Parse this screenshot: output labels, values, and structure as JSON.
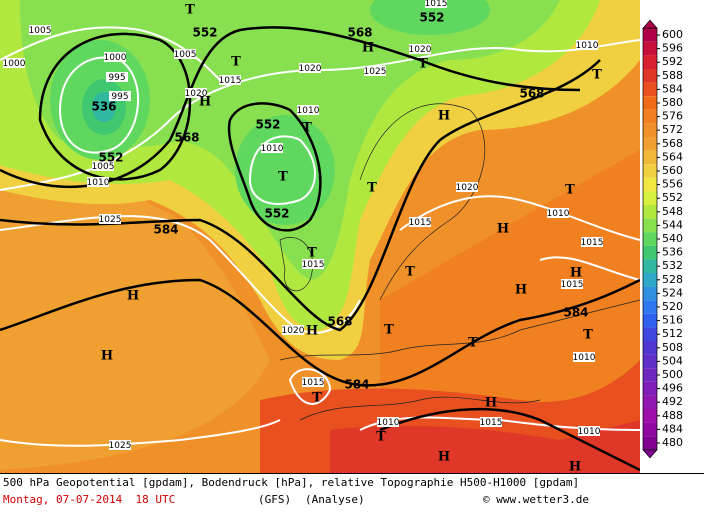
{
  "map": {
    "contour_labels": [
      "552",
      "552",
      "568",
      "536",
      "552",
      "552",
      "552",
      "568",
      "568",
      "584",
      "584",
      "568",
      "584"
    ],
    "isobar_labels": [
      "1005",
      "1000",
      "1000",
      "995",
      "995",
      "1005",
      "1015",
      "1020",
      "1025",
      "1020",
      "1010",
      "1010",
      "1005",
      "1010",
      "1025",
      "1020",
      "1015",
      "1010",
      "1015",
      "1015",
      "1015",
      "1010",
      "1015",
      "1010",
      "1015",
      "1010",
      "1025",
      "1020",
      "1010",
      "1020",
      "1015"
    ],
    "pressure_centers": [
      "T",
      "T",
      "H",
      "T",
      "T",
      "T",
      "H",
      "T",
      "H",
      "T",
      "H",
      "T",
      "T",
      "H",
      "H",
      "H",
      "H",
      "H",
      "T",
      "T",
      "T",
      "T",
      "H",
      "T",
      "H",
      "H",
      "T"
    ]
  },
  "legend": {
    "levels": [
      600,
      596,
      592,
      588,
      584,
      580,
      576,
      572,
      568,
      564,
      560,
      556,
      552,
      548,
      544,
      540,
      536,
      532,
      528,
      524,
      520,
      516,
      512,
      508,
      504,
      500,
      496,
      492,
      488,
      484,
      480
    ],
    "colors": [
      "#b0004a",
      "#c8103c",
      "#d82030",
      "#e03828",
      "#e85020",
      "#f06a18",
      "#f08020",
      "#f09028",
      "#f0a030",
      "#f0b838",
      "#f0d040",
      "#f0e840",
      "#d8f040",
      "#b0e840",
      "#88e050",
      "#60d860",
      "#40c870",
      "#30b8a0",
      "#30a8c8",
      "#3090e0",
      "#3078f0",
      "#3060f0",
      "#4048e0",
      "#5038d0",
      "#6030c8",
      "#7028c0",
      "#8020b8",
      "#9018b0",
      "#a010a8",
      "#9008a0",
      "#800090"
    ]
  },
  "footer": {
    "description": "500 hPa Geopotential [gpdam], Bodendruck [hPa], relative Topographie H500-H1000 [gpdam]",
    "date": "Montag, 07-07-2014  18 UTC",
    "model": "(GFS)",
    "run": "(Analyse)",
    "copyright": "© www.wetter3.de"
  }
}
